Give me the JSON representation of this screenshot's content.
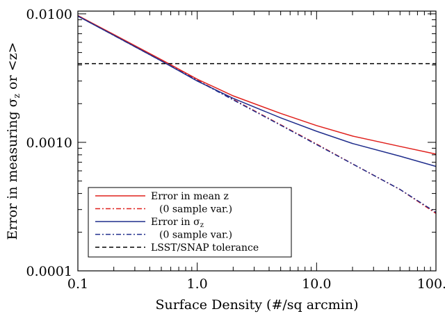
{
  "chart_data": {
    "type": "line",
    "title": "",
    "xlabel": "Surface Density (#/sq arcmin)",
    "ylabel": {
      "prefix": "Error in measuring ",
      "sigma": "σ",
      "sub": "z",
      "suffix": " or <z>"
    },
    "xscale": "log",
    "yscale": "log",
    "xlim": [
      0.1,
      100.0
    ],
    "ylim": [
      0.0001,
      0.0105
    ],
    "x_ticks": [
      {
        "value": 0.1,
        "label": "0.1"
      },
      {
        "value": 1.0,
        "label": "1.0"
      },
      {
        "value": 10.0,
        "label": "10.0"
      },
      {
        "value": 100.0,
        "label": "100.0"
      }
    ],
    "y_ticks": [
      {
        "value": 0.0001,
        "label": "0.0001"
      },
      {
        "value": 0.001,
        "label": "0.0010"
      },
      {
        "value": 0.01,
        "label": "0.0100"
      }
    ],
    "grid": false,
    "legend_position": "bottom-left",
    "series": [
      {
        "name": "Error in mean z",
        "color": "#e0201c",
        "dash": "solid",
        "x": [
          0.1,
          0.2,
          0.5,
          1.0,
          2.0,
          5.0,
          10.0,
          20.0,
          50.0,
          100.0
        ],
        "y": [
          0.0097,
          0.0069,
          0.0044,
          0.0031,
          0.0023,
          0.00168,
          0.00135,
          0.00112,
          0.00093,
          0.00081
        ]
      },
      {
        "name": "(0 sample var.)",
        "color": "#e0201c",
        "dash": "dashdot",
        "x": [
          0.1,
          0.2,
          0.5,
          1.0,
          2.0,
          5.0,
          10.0,
          20.0,
          50.0,
          100.0
        ],
        "y": [
          0.0097,
          0.0068,
          0.0043,
          0.00305,
          0.00216,
          0.00137,
          0.00097,
          0.00068,
          0.00043,
          0.00028
        ]
      },
      {
        "name": "Error in ",
        "name_sigma": "σ",
        "name_sub": "z",
        "color": "#1f2d8c",
        "dash": "solid",
        "x": [
          0.1,
          0.2,
          0.5,
          1.0,
          2.0,
          5.0,
          10.0,
          20.0,
          50.0,
          100.0
        ],
        "y": [
          0.0096,
          0.0068,
          0.0043,
          0.003,
          0.0022,
          0.00155,
          0.00122,
          0.00098,
          0.00078,
          0.00065
        ]
      },
      {
        "name": "(0 sample var.)",
        "color": "#1f2d8c",
        "dash": "dashdot",
        "x": [
          0.1,
          0.2,
          0.5,
          1.0,
          2.0,
          5.0,
          10.0,
          20.0,
          50.0,
          100.0
        ],
        "y": [
          0.0096,
          0.0068,
          0.0043,
          0.00303,
          0.00214,
          0.00136,
          0.00096,
          0.00068,
          0.00043,
          0.000285
        ]
      },
      {
        "name": "LSST/SNAP tolerance",
        "color": "#000000",
        "dash": "dashed",
        "x": [
          0.1,
          100.0
        ],
        "y": [
          0.0041,
          0.0041
        ]
      }
    ]
  }
}
